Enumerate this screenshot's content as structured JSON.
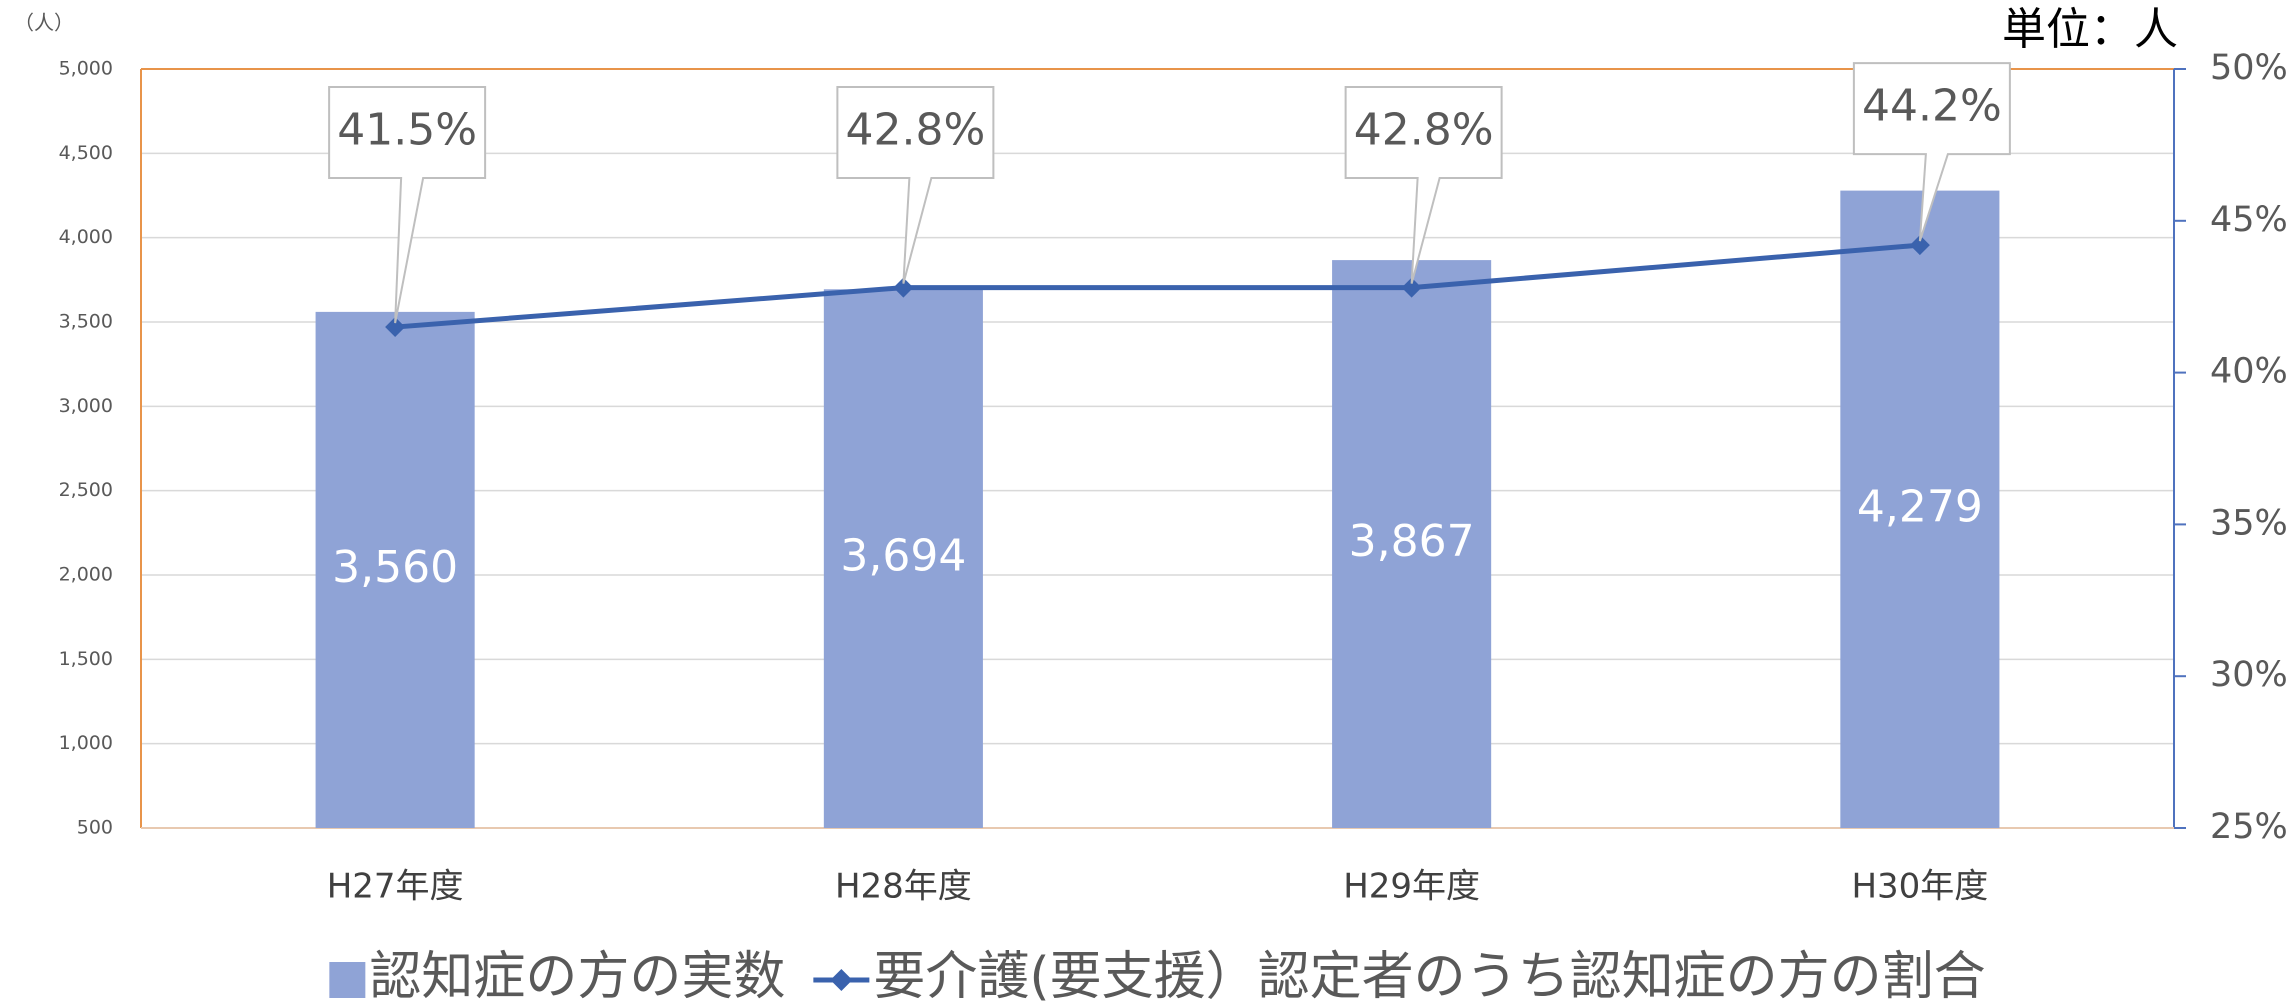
{
  "chart_data": {
    "type": "combo",
    "ylabel": "（人）",
    "note": "単位：人",
    "categories": [
      "H27年度",
      "H28年度",
      "H29年度",
      "H30年度"
    ],
    "series": [
      {
        "name": "認知症の方の実数",
        "type": "bar",
        "color": "#8fa3d6",
        "values": [
          3560,
          3694,
          3867,
          4279
        ],
        "value_labels": [
          "3,560",
          "3,694",
          "3,867",
          "4,279"
        ]
      },
      {
        "name": "要介護(要支援）認定者のうち認知症の方の割合",
        "type": "line",
        "axis": "y2",
        "color": "#3a62ad",
        "values": [
          41.5,
          42.8,
          42.8,
          44.2
        ],
        "value_labels": [
          "41.5%",
          "42.8%",
          "42.8%",
          "44.2%"
        ]
      }
    ],
    "ylim": [
      500,
      5000
    ],
    "yticks": [
      {
        "value": 500,
        "label": "500"
      },
      {
        "value": 1000,
        "label": "1,000"
      },
      {
        "value": 1500,
        "label": "1,500"
      },
      {
        "value": 2000,
        "label": "2,000"
      },
      {
        "value": 2500,
        "label": "2,500"
      },
      {
        "value": 3000,
        "label": "3,000"
      },
      {
        "value": 3500,
        "label": "3,500"
      },
      {
        "value": 4000,
        "label": "4,000"
      },
      {
        "value": 4500,
        "label": "4,500"
      },
      {
        "value": 5000,
        "label": "5,000"
      }
    ],
    "y2lim": [
      25,
      50
    ],
    "y2ticks": [
      {
        "value": 25,
        "label": "25%"
      },
      {
        "value": 30,
        "label": "30%"
      },
      {
        "value": 35,
        "label": "35%"
      },
      {
        "value": 40,
        "label": "40%"
      },
      {
        "value": 45,
        "label": "45%"
      },
      {
        "value": 50,
        "label": "50%"
      }
    ],
    "grid": true
  }
}
